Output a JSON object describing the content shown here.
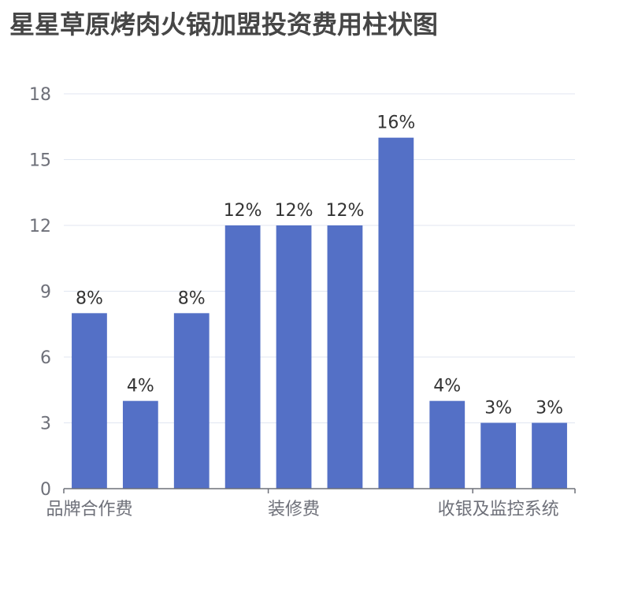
{
  "chart_data": {
    "type": "bar",
    "title": "星星草原烤肉火锅加盟投资费用柱状图",
    "categories": [
      "品牌合作费",
      "",
      "",
      "",
      "装修费",
      "",
      "",
      "",
      "收银及监控系统",
      ""
    ],
    "values": [
      8,
      4,
      8,
      12,
      12,
      12,
      16,
      4,
      3,
      3
    ],
    "data_labels": [
      "8%",
      "4%",
      "8%",
      "12%",
      "12%",
      "12%",
      "16%",
      "4%",
      "3%",
      "3%"
    ],
    "ylim": [
      0,
      18
    ],
    "yticks": [
      0,
      3,
      6,
      9,
      12,
      15,
      18
    ],
    "grid": true,
    "legend": "none",
    "bar_color": "#5470c6",
    "grid_color": "#e0e6f1",
    "axis_color": "#6e7079"
  }
}
